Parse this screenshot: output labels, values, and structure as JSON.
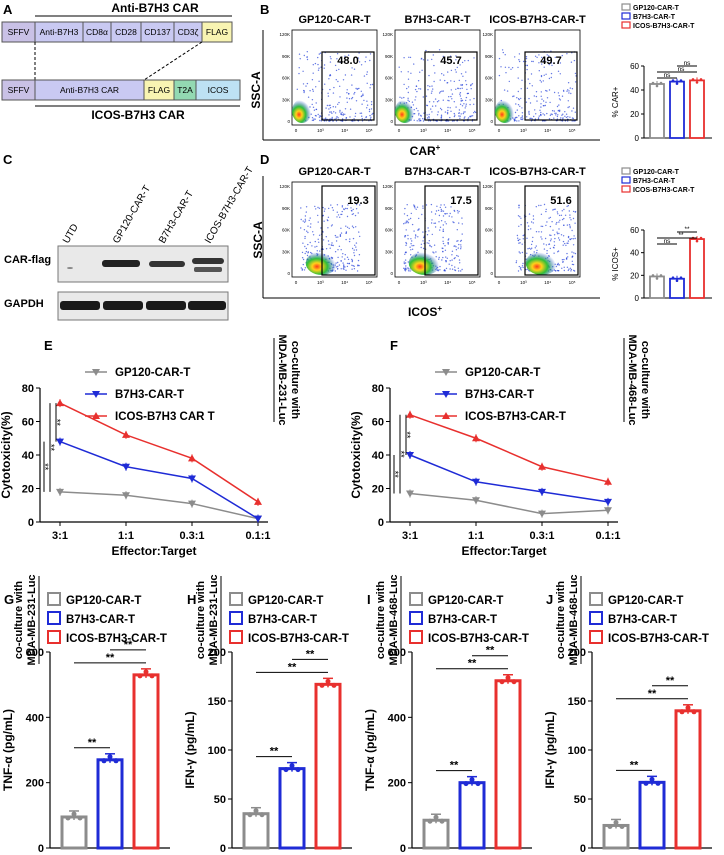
{
  "colors": {
    "gray": "#8c8c8c",
    "blue": "#1f2bd6",
    "red": "#e8302e",
    "sffv_fill": "#c9c1e6",
    "car_fill": "#c9c9f2",
    "flag_fill": "#f8f4b2",
    "t2a_fill": "#93d9b2",
    "icos_fill": "#bde1f4"
  },
  "panel_letters": {
    "A": "A",
    "B": "B",
    "C": "C",
    "D": "D",
    "E": "E",
    "F": "F",
    "G": "G",
    "H": "H",
    "I": "I",
    "J": "J"
  },
  "panel_a": {
    "top_title": "Anti-B7H3 CAR",
    "top_segments": [
      "SFFV",
      "Anti-B7H3",
      "CD8α",
      "CD28",
      "CD137",
      "CD3ζ",
      "FLAG"
    ],
    "bottom_segments": [
      "SFFV",
      "Anti-B7H3 CAR",
      "FLAG",
      "T2A",
      "ICOS"
    ],
    "bottom_title": "ICOS-B7H3 CAR"
  },
  "panel_b": {
    "titles": [
      "GP120-CAR-T",
      "B7H3-CAR-T",
      "ICOS-B7H3-CAR-T"
    ],
    "gate_values": [
      "48.0",
      "45.7",
      "49.7"
    ],
    "ylabel": "SSC-A",
    "xlabel": "CAR",
    "xlabel_sup": "+",
    "y_ticks": [
      "120K",
      "90K",
      "60K",
      "30K",
      "0"
    ],
    "x_ticks": [
      "0",
      "10³",
      "10⁴",
      "10⁵"
    ]
  },
  "panel_c": {
    "lanes": [
      "UTD",
      "GP120-CAR-T",
      "B7H3-CAR-T",
      "ICOS-B7H3-CAR-T"
    ],
    "rows": [
      "CAR-flag",
      "GAPDH"
    ]
  },
  "panel_d": {
    "titles": [
      "GP120-CAR-T",
      "B7H3-CAR-T",
      "ICOS-B7H3-CAR-T"
    ],
    "gate_values": [
      "19.3",
      "17.5",
      "51.6"
    ],
    "ylabel": "SSC-A",
    "xlabel": "ICOS",
    "xlabel_sup": "+",
    "y_ticks": [
      "120K",
      "90K",
      "60K",
      "30K",
      "0"
    ],
    "x_ticks": [
      "0",
      "10³",
      "10⁴",
      "10⁵"
    ]
  },
  "legend_small": [
    "GP120-CAR-T",
    "B7H3-CAR-T",
    "ICOS-B7H3-CAR-T"
  ],
  "sig": {
    "ns": "ns",
    "star2": "**"
  },
  "coculture": {
    "line1": "co-culture with",
    "mda231": "MDA-MB-231-Luc",
    "mda468": "MDA-MB-468-Luc"
  },
  "chart_data": [
    {
      "id": "B-bar",
      "type": "bar",
      "categories": [
        "GP120-CAR-T",
        "B7H3-CAR-T",
        "ICOS-B7H3-CAR-T"
      ],
      "values": [
        45,
        47,
        48
      ],
      "ylabel": "% CAR+",
      "ylim": [
        0,
        60
      ],
      "yticks": [
        0,
        20,
        40,
        60
      ],
      "annotations": [
        "ns",
        "ns",
        "ns"
      ]
    },
    {
      "id": "D-bar",
      "type": "bar",
      "categories": [
        "GP120-CAR-T",
        "B7H3-CAR-T",
        "ICOS-B7H3-CAR-T"
      ],
      "values": [
        19,
        17,
        52
      ],
      "ylabel": "% ICOS+",
      "ylim": [
        0,
        60
      ],
      "yticks": [
        0,
        20,
        40,
        60
      ],
      "annotations": [
        "ns",
        "**",
        "**"
      ]
    },
    {
      "id": "E-line",
      "type": "line",
      "title": "co-culture with MDA-MB-231-Luc",
      "categories": [
        "3:1",
        "1:1",
        "0.3:1",
        "0.1:1"
      ],
      "series": [
        {
          "name": "GP120-CAR-T",
          "values": [
            18,
            16,
            11,
            2
          ]
        },
        {
          "name": "B7H3-CAR-T",
          "values": [
            48,
            33,
            26,
            2
          ]
        },
        {
          "name": "ICOS-B7H3 CAR T",
          "values": [
            71,
            52,
            38,
            12
          ]
        }
      ],
      "xlabel": "Effector:Target",
      "ylabel": "Cytotoxicity(%)",
      "ylim": [
        0,
        80
      ],
      "yticks": [
        0,
        20,
        40,
        60,
        80
      ]
    },
    {
      "id": "F-line",
      "type": "line",
      "title": "co-culture with MDA-MB-468-Luc",
      "categories": [
        "3:1",
        "1:1",
        "0.3:1",
        "0.1:1"
      ],
      "series": [
        {
          "name": "GP120-CAR-T",
          "values": [
            17,
            13,
            5,
            7
          ]
        },
        {
          "name": "B7H3-CAR-T",
          "values": [
            40,
            24,
            18,
            12
          ]
        },
        {
          "name": "ICOS-B7H3-CAR-T",
          "values": [
            64,
            50,
            33,
            24
          ]
        }
      ],
      "xlabel": "Effector:Target",
      "ylabel": "Cytotoxicity(%)",
      "ylim": [
        0,
        80
      ],
      "yticks": [
        0,
        20,
        40,
        60,
        80
      ]
    },
    {
      "id": "G-bar",
      "type": "bar",
      "title": "co-culture with MDA-MB-231-Luc",
      "categories": [
        "GP120-CAR-T",
        "B7H3-CAR-T",
        "ICOS-B7H3-CAR-T"
      ],
      "values": [
        95,
        270,
        530
      ],
      "ylabel": "TNF-α (pg/mL)",
      "ylim": [
        0,
        600
      ],
      "yticks": [
        0,
        200,
        400,
        600
      ]
    },
    {
      "id": "H-bar",
      "type": "bar",
      "title": "co-culture with MDA-MB-231-Luc",
      "categories": [
        "GP120-CAR-T",
        "B7H3-CAR-T",
        "ICOS-B7H3-CAR-T"
      ],
      "values": [
        35,
        81,
        167
      ],
      "ylabel": "IFN-γ (pg/mL)",
      "ylim": [
        0,
        200
      ],
      "yticks": [
        0,
        50,
        100,
        150,
        200
      ]
    },
    {
      "id": "I-bar",
      "type": "bar",
      "title": "co-culture with MDA-MB-468-Luc",
      "categories": [
        "GP120-CAR-T",
        "B7H3-CAR-T",
        "ICOS-B7H3-CAR-T"
      ],
      "values": [
        85,
        200,
        512
      ],
      "ylabel": "TNF-α (pg/mL)",
      "ylim": [
        0,
        600
      ],
      "yticks": [
        0,
        200,
        400,
        600
      ]
    },
    {
      "id": "J-bar",
      "type": "bar",
      "title": "co-culture with MDA-MB-468-Luc",
      "categories": [
        "GP120-CAR-T",
        "B7H3-CAR-T",
        "ICOS-B7H3-CAR-T"
      ],
      "values": [
        23,
        67,
        140
      ],
      "ylabel": "IFN-γ (pg/mL)",
      "ylim": [
        0,
        200
      ],
      "yticks": [
        0,
        50,
        100,
        150,
        200
      ]
    }
  ]
}
